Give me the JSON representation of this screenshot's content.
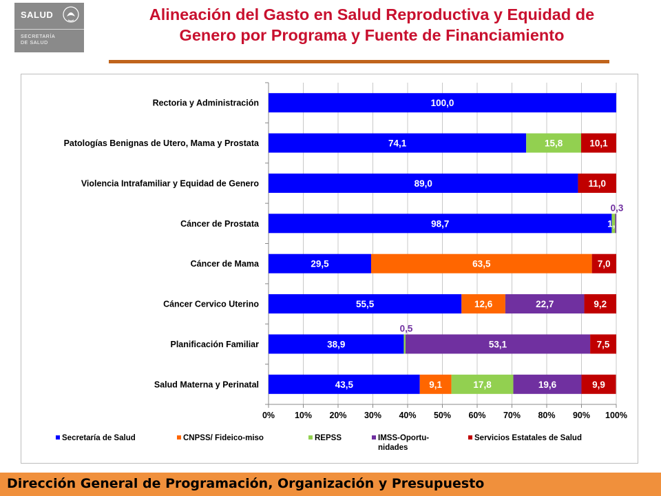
{
  "logo": {
    "top_text": "SALUD",
    "bottom_line1": "SECRETARÍA",
    "bottom_line2": "DE SALUD"
  },
  "title": {
    "line1": "Alineación del Gasto en Salud Reproductiva y Equidad de",
    "line2": "Genero por Programa y Fuente de Financiamiento"
  },
  "footer": {
    "text": "Dirección General de Programación, Organización y Presupuesto"
  },
  "chart_data": {
    "type": "bar",
    "orientation": "horizontal",
    "stacked": "percent",
    "categories": [
      "Rectoria y Administración",
      "Patologías Benignas de Utero, Mama  y Prostata",
      "Violencia Intrafamiliar y Equidad de Genero",
      "Cáncer de Prostata",
      "Cáncer de Mama",
      "Cáncer Cervico Uterino",
      "Planificación Familiar",
      "Salud Materna y Perinatal"
    ],
    "series": [
      {
        "name": "Secretaría de Salud",
        "color": "#0000ff",
        "values": [
          100.0,
          74.1,
          89.0,
          98.7,
          29.5,
          55.5,
          38.9,
          43.5
        ],
        "labels": [
          "100,0",
          "74,1",
          "89,0",
          "98,7",
          "29,5",
          "55,5",
          "38,9",
          "43,5"
        ]
      },
      {
        "name": "CNPSS/ Fideico-miso",
        "color": "#ff6600",
        "values": [
          0,
          0,
          0,
          0,
          63.5,
          12.6,
          0,
          9.1
        ],
        "labels": [
          "",
          "",
          "",
          "",
          "63,5",
          "12,6",
          "",
          "9,1"
        ]
      },
      {
        "name": "REPSS",
        "color": "#92d050",
        "values": [
          0,
          15.8,
          0,
          1.0,
          0,
          0,
          0.5,
          17.8
        ],
        "labels": [
          "",
          "15,8",
          "",
          "1,",
          "",
          "",
          "0,5",
          "17,8"
        ]
      },
      {
        "name": "IMSS-Oportu-nidades",
        "color": "#7030a0",
        "legend_lines": [
          "IMSS-Oportu-",
          "nidades"
        ],
        "values": [
          0,
          0,
          0,
          0.3,
          0,
          22.7,
          53.1,
          19.6
        ],
        "labels": [
          "",
          "",
          "",
          "0,3",
          "",
          "22,7",
          "53,1",
          "19,6"
        ]
      },
      {
        "name": "Servicios Estatales de Salud",
        "color": "#c00000",
        "values": [
          0,
          10.1,
          11.0,
          0,
          7.0,
          9.2,
          7.5,
          9.9
        ],
        "labels": [
          "",
          "10,1",
          "11,0",
          "",
          "7,0",
          "9,2",
          "7,5",
          "9,9"
        ]
      }
    ],
    "x_ticks": [
      "0%",
      "10%",
      "20%",
      "30%",
      "40%",
      "50%",
      "60%",
      "70%",
      "80%",
      "90%",
      "100%"
    ],
    "xlim": [
      0,
      100
    ],
    "legend_position": "bottom",
    "grid": true
  }
}
